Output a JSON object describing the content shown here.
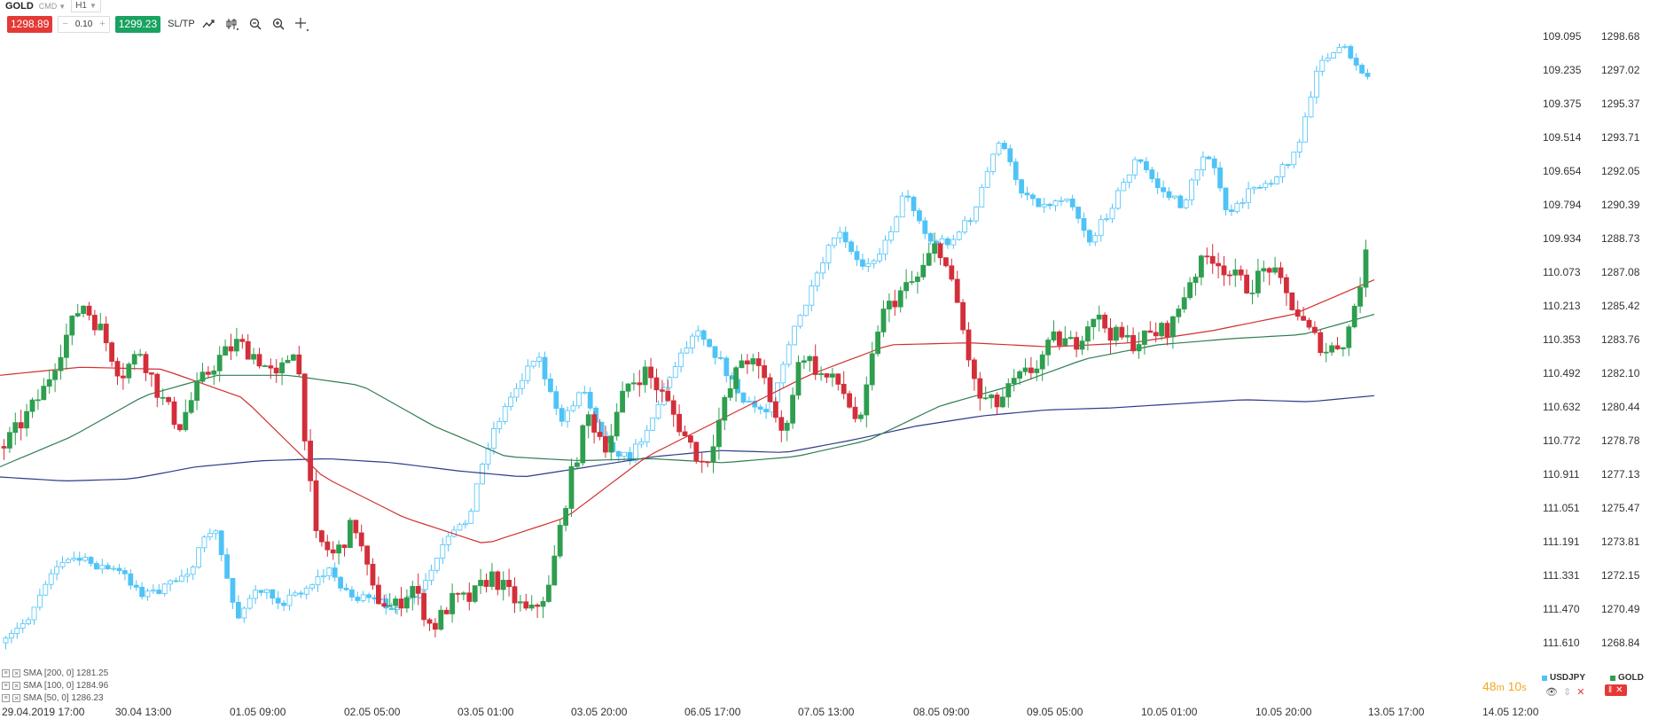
{
  "header": {
    "symbol": "GOLD",
    "mode": "CMD",
    "timeframe": "H1"
  },
  "trade": {
    "sell_price": "1298.89",
    "volume": "0.10",
    "minus": "−",
    "plus": "+",
    "buy_price": "1299.23",
    "sltp_label": "SL/TP"
  },
  "icons": [
    "trend-icon",
    "candles-icon",
    "zoom-out-icon",
    "zoom-in-icon",
    "crosshair-icon"
  ],
  "colors": {
    "usdjpy": "#4fc3f7",
    "gold_up": "#2e9e4f",
    "gold_down": "#d32f3a",
    "sma200": "#2e3a8c",
    "sma100": "#2e7d52",
    "sma50": "#d32f2f",
    "countdown": "#f5a623"
  },
  "chart_data": {
    "type": "candlestick",
    "series": [
      {
        "name": "USDJPY",
        "axis": "left (inverted)"
      },
      {
        "name": "GOLD",
        "axis": "right"
      }
    ],
    "left_axis_ticks": [
      "109.095",
      "109.235",
      "109.375",
      "109.514",
      "109.654",
      "109.794",
      "109.934",
      "110.073",
      "110.213",
      "110.353",
      "110.492",
      "110.632",
      "110.772",
      "110.911",
      "111.051",
      "111.191",
      "111.331",
      "111.470",
      "111.610"
    ],
    "right_axis_ticks": [
      "1298.68",
      "1297.02",
      "1295.37",
      "1293.71",
      "1292.05",
      "1290.39",
      "1288.73",
      "1287.08",
      "1285.42",
      "1283.76",
      "1282.10",
      "1280.44",
      "1278.78",
      "1277.13",
      "1275.47",
      "1273.81",
      "1272.15",
      "1270.49",
      "1268.84"
    ],
    "x_ticks": [
      "29.04.2019 17:00",
      "30.04 13:00",
      "01.05 09:00",
      "02.05 05:00",
      "03.05 01:00",
      "03.05 20:00",
      "06.05 17:00",
      "07.05 13:00",
      "08.05 09:00",
      "09.05 05:00",
      "10.05 01:00",
      "10.05 20:00",
      "13.05 17:00",
      "14.05 12:00"
    ],
    "gold_path": [
      1278.5,
      1279.8,
      1281.2,
      1283.5,
      1285.6,
      1284.2,
      1282.0,
      1283.2,
      1281.0,
      1279.5,
      1281.5,
      1282.8,
      1283.6,
      1282.9,
      1281.8,
      1283.6,
      1274.0,
      1273.1,
      1274.8,
      1271.2,
      1270.5,
      1271.6,
      1269.5,
      1270.9,
      1271.0,
      1272.2,
      1271.2,
      1270.2,
      1271.5,
      1276.5,
      1280.0,
      1278.5,
      1281.5,
      1282.2,
      1280.8,
      1279.0,
      1277.5,
      1280.5,
      1283.0,
      1282.0,
      1278.9,
      1283.2,
      1282.0,
      1281.5,
      1279.4,
      1284.8,
      1286.0,
      1286.8,
      1288.6,
      1285.5,
      1281.0,
      1280.5,
      1281.7,
      1282.4,
      1283.8,
      1283.5,
      1285.0,
      1284.0,
      1283.6,
      1284.0,
      1284.4,
      1286.8,
      1288.0,
      1287.0,
      1286.3,
      1287.4,
      1285.8,
      1284.2,
      1283.2,
      1283.8,
      1287.8
    ],
    "usdjpy_path": [
      111.61,
      111.5,
      111.3,
      111.26,
      111.29,
      111.32,
      111.41,
      111.38,
      111.3,
      111.12,
      111.5,
      111.39,
      111.44,
      111.38,
      111.31,
      111.42,
      111.44,
      111.46,
      111.4,
      111.2,
      111.1,
      110.75,
      110.57,
      110.4,
      110.7,
      110.55,
      110.78,
      110.85,
      110.68,
      110.45,
      110.3,
      110.45,
      110.62,
      110.65,
      110.35,
      110.13,
      109.9,
      110.05,
      109.98,
      109.73,
      109.95,
      109.94,
      109.82,
      109.52,
      109.73,
      109.8,
      109.75,
      109.95,
      109.78,
      109.6,
      109.73,
      109.8,
      109.55,
      109.85,
      109.72,
      109.68,
      109.55,
      109.18,
      109.15,
      109.26
    ],
    "sma200": [
      1277.0,
      1276.8,
      1276.9,
      1277.5,
      1277.8,
      1277.9,
      1277.7,
      1277.3,
      1277.0,
      1277.5,
      1278.0,
      1278.3,
      1278.2,
      1278.8,
      1279.5,
      1280.0,
      1280.3,
      1280.4,
      1280.6,
      1280.8,
      1280.7,
      1281.0
    ],
    "sma100": [
      1277.5,
      1279.0,
      1281.0,
      1282.0,
      1282.0,
      1281.5,
      1279.5,
      1278.0,
      1277.8,
      1277.9,
      1277.7,
      1278.0,
      1278.8,
      1280.5,
      1281.5,
      1282.8,
      1283.5,
      1283.8,
      1284.0,
      1285.0
    ],
    "sma50": [
      1282.0,
      1282.4,
      1282.3,
      1280.9,
      1277.0,
      1275.0,
      1273.7,
      1275.0,
      1278.0,
      1280.0,
      1282.0,
      1283.5,
      1283.6,
      1283.4,
      1283.6,
      1284.2,
      1285.0,
      1286.7
    ]
  },
  "legend": [
    {
      "label": "SMA [200, 0] 1281.25"
    },
    {
      "label": "SMA [100, 0] 1284.96"
    },
    {
      "label": "SMA [50, 0] 1286.23"
    }
  ],
  "countdown": {
    "minutes": "48",
    "m": "m",
    "seconds": "10",
    "s": "s"
  },
  "instruments": {
    "left": "USDJPY",
    "right": "GOLD"
  }
}
